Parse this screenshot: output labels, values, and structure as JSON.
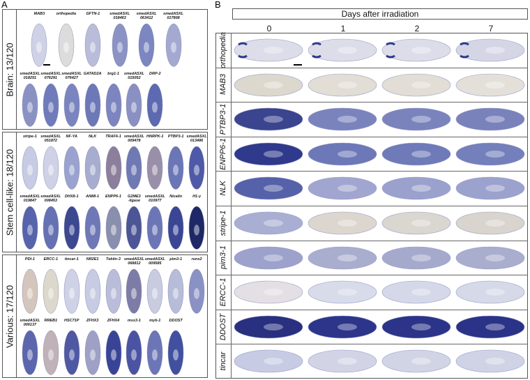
{
  "panelA": {
    "letter": "A",
    "groups": [
      {
        "label": "Brain: 13/120",
        "rows": [
          [
            "MAB3",
            "orthopedia",
            "GFTN-1",
            "smedASXL\n018463",
            "smedASXL\n063412",
            "smedASXL\n017808"
          ],
          [
            "smedASXL\n018251",
            "smedASXL\n076291",
            "smedASXL\n076427",
            "GATAD2A",
            "brg1-1",
            "smedASXL\n015052",
            "DRP-2"
          ]
        ]
      },
      {
        "label": "Stem cell-like: 18/120",
        "rows": [
          [
            "stripe-1",
            "smedASXL\n051872",
            "NF-YA",
            "NLK",
            "TRAF6-1",
            "smedASXL\n009478",
            "HNRPK-1",
            "PTBP3-1",
            "smedASXL\n013486"
          ],
          [
            "smedASXL\n019847",
            "smedASXL\n008453",
            "DHX8-1",
            "ANMI-1",
            "ENPP6-1",
            "G2ME3\n-ligase",
            "smedASXL\n010977",
            "Nicalin",
            "H1-γ"
          ]
        ]
      },
      {
        "label": "Various: 17/120",
        "rows": [
          [
            "PDI-1",
            "ERCC-1",
            "tincar-1",
            "NR2E1",
            "Tektin-3",
            "smedASXL\n068812",
            "smedASXL\n009585",
            "pim3-1",
            "runx2"
          ],
          [
            "smedASXL\n006137",
            "RREB1",
            "HSC71P",
            "ZFHX3",
            "ZFHX4",
            "msx3-1",
            "myb-1",
            "DDOST"
          ]
        ]
      }
    ]
  },
  "panelB": {
    "letter": "B",
    "header": "Days after irradiation",
    "days": [
      "0",
      "1",
      "2",
      "7"
    ],
    "genes": [
      "orthopedia",
      "MAB3",
      "PTBP3-1",
      "ENPP6-1",
      "NLK",
      "stripe-1",
      "pim3-1",
      "ERCC-1",
      "DDOST",
      "tincar"
    ]
  }
}
